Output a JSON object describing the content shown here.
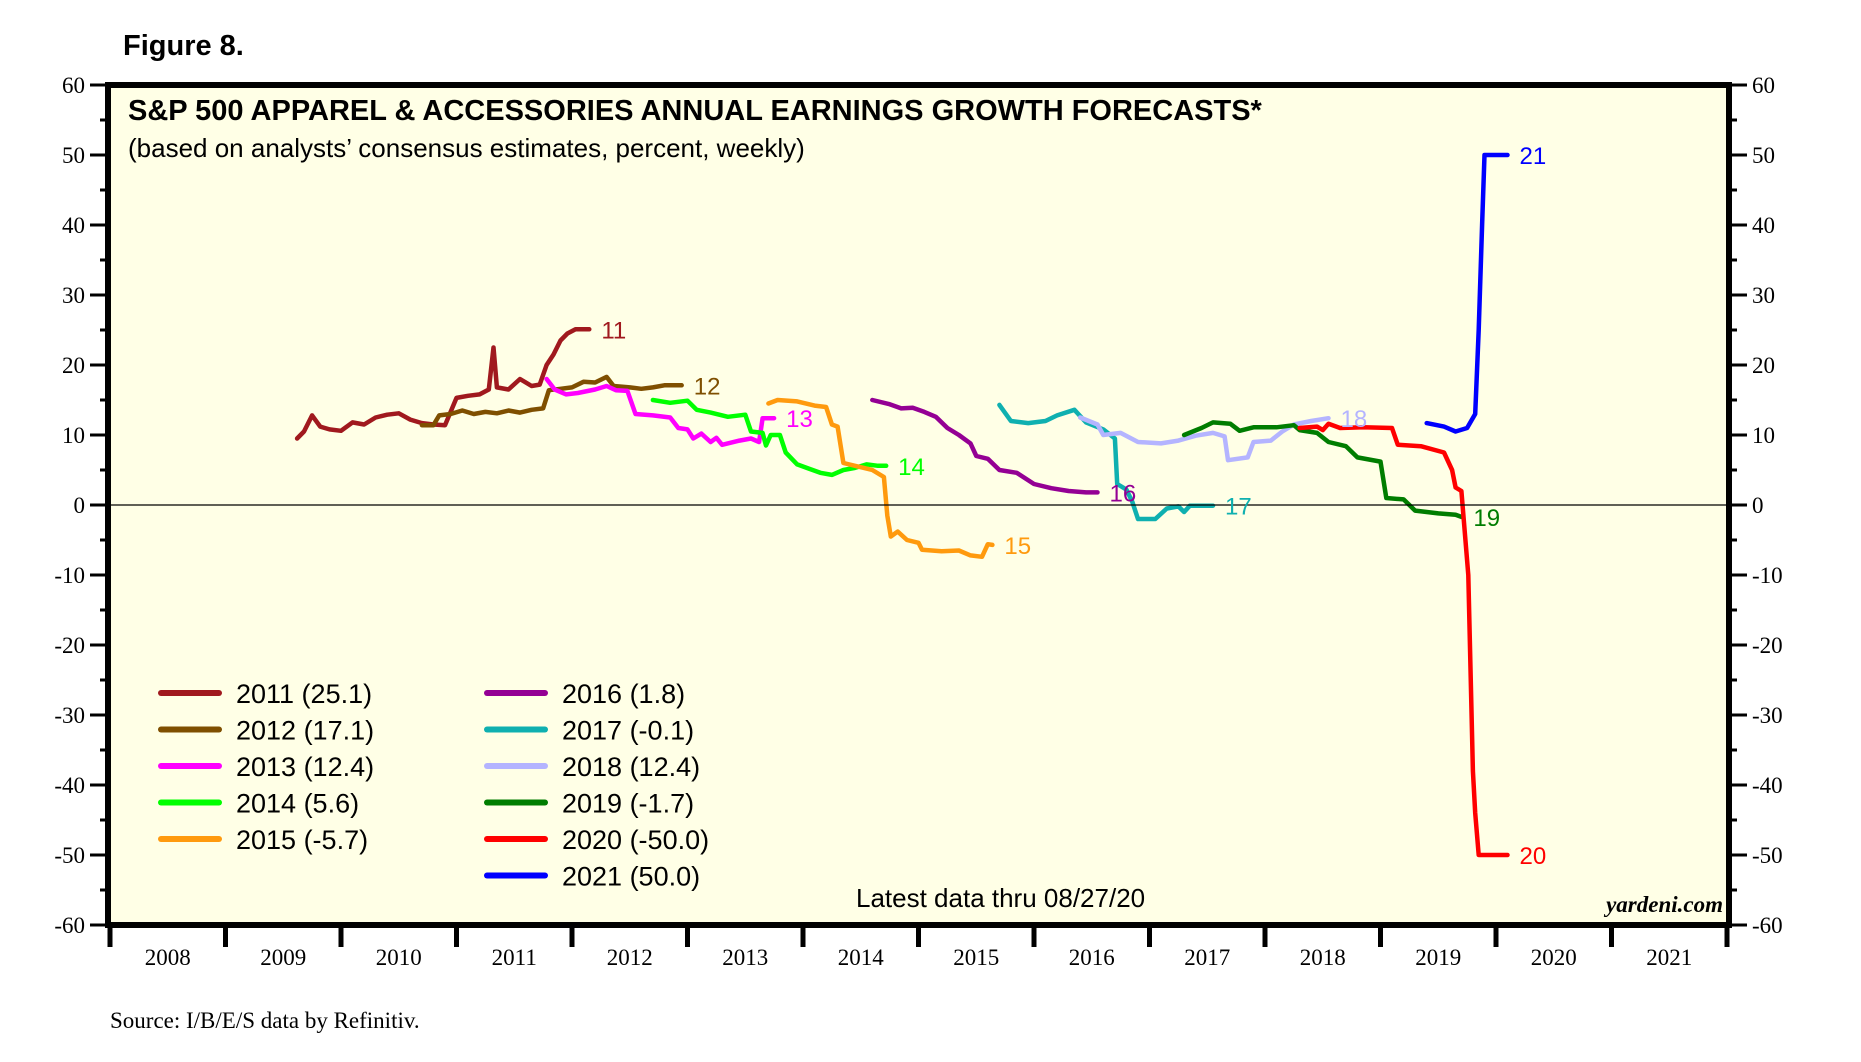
{
  "figure_label": "Figure 8.",
  "source": "Source: I/B/E/S data by Refinitiv.",
  "brand": "yardeni.com",
  "note": "Latest data thru 08/27/20",
  "colors": {
    "background": "#ffffe6",
    "frame": "#000000"
  },
  "chart_data": {
    "type": "line",
    "title": "S&P 500 APPAREL & ACCESSORIES ANNUAL EARNINGS GROWTH FORECASTS*",
    "subtitle": "(based on analysts’ consensus estimates, percent, weekly)",
    "xlabel": "",
    "ylabel": "",
    "ylim": [
      -60,
      60
    ],
    "xlim": [
      2008,
      2022
    ],
    "yticks": [
      60,
      50,
      40,
      30,
      20,
      10,
      0,
      -10,
      -20,
      -30,
      -40,
      -50,
      -60
    ],
    "xtick_labels": [
      "2008",
      "2009",
      "2010",
      "2011",
      "2012",
      "2013",
      "2014",
      "2015",
      "2016",
      "2017",
      "2018",
      "2019",
      "2020",
      "2021"
    ],
    "zero_line": true,
    "grid": false,
    "legend_position": "bottom-left",
    "series": [
      {
        "name": "2011",
        "legend": "2011 (25.1)",
        "end_label": "11",
        "color": "#a0191e",
        "points": [
          [
            2009.62,
            9.5
          ],
          [
            2009.68,
            10.5
          ],
          [
            2009.75,
            12.8
          ],
          [
            2009.82,
            11.2
          ],
          [
            2009.9,
            10.8
          ],
          [
            2010.0,
            10.6
          ],
          [
            2010.1,
            11.8
          ],
          [
            2010.2,
            11.5
          ],
          [
            2010.3,
            12.5
          ],
          [
            2010.4,
            12.9
          ],
          [
            2010.5,
            13.1
          ],
          [
            2010.6,
            12.2
          ],
          [
            2010.7,
            11.7
          ],
          [
            2010.8,
            11.5
          ],
          [
            2010.9,
            11.4
          ],
          [
            2011.0,
            15.3
          ],
          [
            2011.1,
            15.6
          ],
          [
            2011.2,
            15.8
          ],
          [
            2011.28,
            16.5
          ],
          [
            2011.32,
            22.5
          ],
          [
            2011.35,
            16.8
          ],
          [
            2011.45,
            16.5
          ],
          [
            2011.55,
            18.0
          ],
          [
            2011.65,
            17.0
          ],
          [
            2011.72,
            17.2
          ],
          [
            2011.78,
            20.0
          ],
          [
            2011.84,
            21.5
          ],
          [
            2011.9,
            23.5
          ],
          [
            2011.96,
            24.5
          ],
          [
            2012.03,
            25.1
          ],
          [
            2012.15,
            25.1
          ]
        ]
      },
      {
        "name": "2012",
        "legend": "2012 (17.1)",
        "end_label": "12",
        "color": "#7f4f00",
        "points": [
          [
            2010.7,
            11.4
          ],
          [
            2010.8,
            11.4
          ],
          [
            2010.85,
            12.8
          ],
          [
            2010.95,
            13.0
          ],
          [
            2011.05,
            13.5
          ],
          [
            2011.15,
            13.0
          ],
          [
            2011.25,
            13.3
          ],
          [
            2011.35,
            13.1
          ],
          [
            2011.45,
            13.5
          ],
          [
            2011.55,
            13.2
          ],
          [
            2011.65,
            13.6
          ],
          [
            2011.75,
            13.8
          ],
          [
            2011.8,
            16.4
          ],
          [
            2011.9,
            16.6
          ],
          [
            2012.0,
            16.8
          ],
          [
            2012.1,
            17.6
          ],
          [
            2012.2,
            17.5
          ],
          [
            2012.3,
            18.3
          ],
          [
            2012.36,
            17.0
          ],
          [
            2012.5,
            16.8
          ],
          [
            2012.6,
            16.6
          ],
          [
            2012.7,
            16.8
          ],
          [
            2012.8,
            17.1
          ],
          [
            2012.95,
            17.1
          ]
        ]
      },
      {
        "name": "2013",
        "legend": "2013 (12.4)",
        "end_label": "13",
        "color": "#ff00ff",
        "points": [
          [
            2011.78,
            18.0
          ],
          [
            2011.85,
            16.5
          ],
          [
            2011.95,
            15.8
          ],
          [
            2012.05,
            16.0
          ],
          [
            2012.2,
            16.5
          ],
          [
            2012.3,
            17.0
          ],
          [
            2012.38,
            16.4
          ],
          [
            2012.48,
            16.3
          ],
          [
            2012.55,
            13.0
          ],
          [
            2012.7,
            12.8
          ],
          [
            2012.85,
            12.5
          ],
          [
            2012.92,
            11.0
          ],
          [
            2013.0,
            10.8
          ],
          [
            2013.05,
            9.5
          ],
          [
            2013.12,
            10.2
          ],
          [
            2013.2,
            9.0
          ],
          [
            2013.25,
            9.6
          ],
          [
            2013.3,
            8.6
          ],
          [
            2013.45,
            9.2
          ],
          [
            2013.55,
            9.5
          ],
          [
            2013.62,
            9.0
          ],
          [
            2013.65,
            12.4
          ],
          [
            2013.75,
            12.4
          ]
        ]
      },
      {
        "name": "2014",
        "legend": "2014 (5.6)",
        "end_label": "14",
        "color": "#00ff00",
        "points": [
          [
            2012.7,
            15.0
          ],
          [
            2012.85,
            14.6
          ],
          [
            2013.0,
            14.9
          ],
          [
            2013.08,
            13.6
          ],
          [
            2013.2,
            13.2
          ],
          [
            2013.35,
            12.6
          ],
          [
            2013.5,
            12.9
          ],
          [
            2013.55,
            10.5
          ],
          [
            2013.65,
            10.3
          ],
          [
            2013.68,
            8.5
          ],
          [
            2013.72,
            10.0
          ],
          [
            2013.8,
            10.0
          ],
          [
            2013.85,
            7.5
          ],
          [
            2013.95,
            5.8
          ],
          [
            2014.05,
            5.2
          ],
          [
            2014.15,
            4.6
          ],
          [
            2014.25,
            4.3
          ],
          [
            2014.35,
            5.0
          ],
          [
            2014.45,
            5.3
          ],
          [
            2014.55,
            5.8
          ],
          [
            2014.65,
            5.6
          ],
          [
            2014.72,
            5.6
          ]
        ]
      },
      {
        "name": "2015",
        "legend": "2015 (-5.7)",
        "end_label": "15",
        "color": "#ff9a0e",
        "points": [
          [
            2013.7,
            14.5
          ],
          [
            2013.78,
            15.0
          ],
          [
            2013.95,
            14.8
          ],
          [
            2014.1,
            14.2
          ],
          [
            2014.2,
            14.0
          ],
          [
            2014.25,
            11.5
          ],
          [
            2014.3,
            11.2
          ],
          [
            2014.35,
            6.0
          ],
          [
            2014.5,
            5.4
          ],
          [
            2014.6,
            5.0
          ],
          [
            2014.7,
            4.0
          ],
          [
            2014.73,
            -1.5
          ],
          [
            2014.76,
            -4.5
          ],
          [
            2014.82,
            -3.8
          ],
          [
            2014.9,
            -5.0
          ],
          [
            2015.0,
            -5.4
          ],
          [
            2015.03,
            -6.4
          ],
          [
            2015.2,
            -6.6
          ],
          [
            2015.35,
            -6.5
          ],
          [
            2015.45,
            -7.2
          ],
          [
            2015.55,
            -7.4
          ],
          [
            2015.6,
            -5.6
          ],
          [
            2015.64,
            -5.7
          ]
        ]
      },
      {
        "name": "2016",
        "legend": "2016 (1.8)",
        "end_label": "16",
        "color": "#940094",
        "points": [
          [
            2014.6,
            15.0
          ],
          [
            2014.75,
            14.4
          ],
          [
            2014.85,
            13.8
          ],
          [
            2014.95,
            13.9
          ],
          [
            2015.05,
            13.3
          ],
          [
            2015.15,
            12.6
          ],
          [
            2015.25,
            11.0
          ],
          [
            2015.35,
            10.0
          ],
          [
            2015.45,
            8.8
          ],
          [
            2015.5,
            7.0
          ],
          [
            2015.6,
            6.6
          ],
          [
            2015.7,
            5.0
          ],
          [
            2015.85,
            4.6
          ],
          [
            2016.0,
            3.0
          ],
          [
            2016.15,
            2.4
          ],
          [
            2016.3,
            2.0
          ],
          [
            2016.45,
            1.8
          ],
          [
            2016.55,
            1.8
          ]
        ]
      },
      {
        "name": "2017",
        "legend": "2017 (-0.1)",
        "end_label": "17",
        "color": "#0fb0b0",
        "points": [
          [
            2015.7,
            14.3
          ],
          [
            2015.8,
            12.0
          ],
          [
            2015.95,
            11.7
          ],
          [
            2016.1,
            12.0
          ],
          [
            2016.2,
            12.8
          ],
          [
            2016.35,
            13.6
          ],
          [
            2016.45,
            11.8
          ],
          [
            2016.6,
            10.8
          ],
          [
            2016.7,
            9.5
          ],
          [
            2016.72,
            3.0
          ],
          [
            2016.8,
            2.2
          ],
          [
            2016.85,
            0.5
          ],
          [
            2016.9,
            -2.0
          ],
          [
            2017.05,
            -2.0
          ],
          [
            2017.15,
            -0.5
          ],
          [
            2017.25,
            -0.2
          ],
          [
            2017.3,
            -1.0
          ],
          [
            2017.35,
            -0.1
          ],
          [
            2017.55,
            -0.1
          ]
        ]
      },
      {
        "name": "2018",
        "legend": "2018 (12.4)",
        "end_label": "18",
        "color": "#b4b4ff",
        "points": [
          [
            2016.4,
            12.5
          ],
          [
            2016.55,
            11.5
          ],
          [
            2016.6,
            10.0
          ],
          [
            2016.75,
            10.3
          ],
          [
            2016.9,
            9.0
          ],
          [
            2017.1,
            8.8
          ],
          [
            2017.25,
            9.2
          ],
          [
            2017.4,
            9.9
          ],
          [
            2017.55,
            10.3
          ],
          [
            2017.65,
            9.8
          ],
          [
            2017.68,
            6.4
          ],
          [
            2017.85,
            6.8
          ],
          [
            2017.9,
            9.0
          ],
          [
            2018.05,
            9.2
          ],
          [
            2018.15,
            10.5
          ],
          [
            2018.25,
            11.5
          ],
          [
            2018.4,
            12.0
          ],
          [
            2018.55,
            12.4
          ]
        ]
      },
      {
        "name": "2019",
        "legend": "2019 (-1.7)",
        "end_label": "19",
        "color": "#007d00",
        "points": [
          [
            2017.3,
            10.0
          ],
          [
            2017.45,
            11.0
          ],
          [
            2017.55,
            11.8
          ],
          [
            2017.7,
            11.6
          ],
          [
            2017.78,
            10.6
          ],
          [
            2017.9,
            11.1
          ],
          [
            2018.1,
            11.1
          ],
          [
            2018.25,
            11.4
          ],
          [
            2018.3,
            10.7
          ],
          [
            2018.45,
            10.3
          ],
          [
            2018.55,
            9.0
          ],
          [
            2018.7,
            8.4
          ],
          [
            2018.8,
            6.8
          ],
          [
            2019.0,
            6.2
          ],
          [
            2019.05,
            1.0
          ],
          [
            2019.2,
            0.8
          ],
          [
            2019.3,
            -0.8
          ],
          [
            2019.5,
            -1.2
          ],
          [
            2019.65,
            -1.4
          ],
          [
            2019.7,
            -1.7
          ]
        ]
      },
      {
        "name": "2020",
        "legend": "2020 (-50.0)",
        "end_label": "20",
        "color": "#ff0000",
        "points": [
          [
            2018.3,
            11.0
          ],
          [
            2018.45,
            11.2
          ],
          [
            2018.5,
            10.7
          ],
          [
            2018.55,
            11.6
          ],
          [
            2018.65,
            11.0
          ],
          [
            2018.85,
            11.1
          ],
          [
            2019.1,
            11.0
          ],
          [
            2019.15,
            8.6
          ],
          [
            2019.35,
            8.4
          ],
          [
            2019.55,
            7.5
          ],
          [
            2019.62,
            5.0
          ],
          [
            2019.65,
            2.5
          ],
          [
            2019.7,
            2.0
          ],
          [
            2019.72,
            -2.0
          ],
          [
            2019.76,
            -10.0
          ],
          [
            2019.8,
            -38.0
          ],
          [
            2019.82,
            -44.0
          ],
          [
            2019.85,
            -50.0
          ],
          [
            2020.1,
            -50.0
          ]
        ]
      },
      {
        "name": "2021",
        "legend": "2021 (50.0)",
        "end_label": "21",
        "color": "#0000ff",
        "points": [
          [
            2019.4,
            11.7
          ],
          [
            2019.55,
            11.2
          ],
          [
            2019.65,
            10.5
          ],
          [
            2019.75,
            11.0
          ],
          [
            2019.82,
            13.0
          ],
          [
            2019.85,
            25.0
          ],
          [
            2019.88,
            40.0
          ],
          [
            2019.9,
            50.0
          ],
          [
            2020.1,
            50.0
          ]
        ]
      }
    ]
  }
}
